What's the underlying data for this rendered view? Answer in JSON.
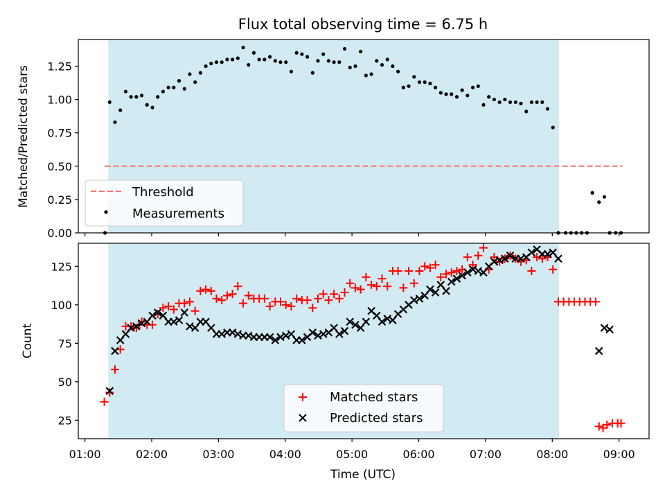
{
  "figure": {
    "title": "Flux total observing time = 6.75 h",
    "xlabel": "Time (UTC)"
  },
  "chart_data": [
    {
      "type": "scatter",
      "title": "Flux total observing time = 6.75 h",
      "xlabel": "",
      "ylabel": "Matched/Predicted stars",
      "x_unit": "hours UTC",
      "xlim": [
        0.9,
        9.45
      ],
      "ylim": [
        0.0,
        1.45
      ],
      "yticks": [
        0.0,
        0.25,
        0.5,
        0.75,
        1.0,
        1.25
      ],
      "ytick_labels": [
        "0.00",
        "0.25",
        "0.50",
        "0.75",
        "1.00",
        "1.25"
      ],
      "xticks": [
        1,
        2,
        3,
        4,
        5,
        6,
        7,
        8,
        9
      ],
      "grid": false,
      "legend": "lower-left",
      "shaded_region": {
        "x_start": 1.35,
        "x_end": 8.1,
        "color": "#add8e6"
      },
      "threshold": {
        "name": "Threshold",
        "y": 0.5,
        "x_start": 1.3,
        "x_end": 9.05,
        "color": "#ff7070",
        "style": "dashed"
      },
      "series": [
        {
          "name": "Measurements",
          "color": "#000000",
          "marker": "dot",
          "x": [
            1.3,
            1.37,
            1.45,
            1.53,
            1.61,
            1.69,
            1.77,
            1.85,
            1.93,
            2.01,
            2.09,
            2.17,
            2.25,
            2.33,
            2.41,
            2.49,
            2.57,
            2.65,
            2.73,
            2.81,
            2.89,
            2.97,
            3.05,
            3.13,
            3.21,
            3.29,
            3.37,
            3.45,
            3.53,
            3.61,
            3.69,
            3.77,
            3.85,
            3.93,
            4.01,
            4.09,
            4.17,
            4.25,
            4.33,
            4.41,
            4.49,
            4.57,
            4.65,
            4.73,
            4.81,
            4.89,
            4.97,
            5.05,
            5.13,
            5.21,
            5.29,
            5.37,
            5.45,
            5.53,
            5.61,
            5.69,
            5.77,
            5.85,
            5.93,
            6.01,
            6.09,
            6.17,
            6.25,
            6.33,
            6.41,
            6.49,
            6.57,
            6.65,
            6.73,
            6.81,
            6.89,
            6.97,
            7.05,
            7.13,
            7.21,
            7.29,
            7.37,
            7.45,
            7.53,
            7.61,
            7.69,
            7.77,
            7.85,
            7.93,
            8.01,
            8.09,
            8.2,
            8.28,
            8.36,
            8.44,
            8.52,
            8.6,
            8.7,
            8.78,
            8.86,
            8.95,
            9.03
          ],
          "y": [
            0.0,
            0.98,
            0.83,
            0.92,
            1.06,
            1.02,
            1.02,
            1.03,
            0.96,
            0.94,
            1.02,
            1.06,
            1.09,
            1.09,
            1.14,
            1.08,
            1.19,
            1.13,
            1.2,
            1.25,
            1.27,
            1.28,
            1.28,
            1.3,
            1.3,
            1.31,
            1.39,
            1.26,
            1.35,
            1.3,
            1.3,
            1.32,
            1.29,
            1.28,
            1.28,
            1.21,
            1.35,
            1.34,
            1.32,
            1.2,
            1.29,
            1.34,
            1.29,
            1.28,
            1.28,
            1.38,
            1.24,
            1.25,
            1.36,
            1.18,
            1.19,
            1.29,
            1.26,
            1.3,
            1.25,
            1.21,
            1.09,
            1.1,
            1.17,
            1.13,
            1.13,
            1.12,
            1.09,
            1.05,
            1.04,
            1.04,
            1.02,
            1.07,
            1.03,
            1.09,
            1.1,
            0.96,
            1.02,
            1.0,
            0.98,
            1.0,
            0.98,
            0.98,
            0.97,
            0.91,
            0.98,
            0.98,
            0.98,
            0.93,
            0.79,
            0.0,
            0.0,
            0.0,
            0.0,
            0.0,
            0.0,
            0.3,
            0.23,
            0.27,
            0.0,
            0.0,
            0.0
          ]
        }
      ]
    },
    {
      "type": "scatter",
      "title": "",
      "xlabel": "Time (UTC)",
      "ylabel": "Count",
      "x_unit": "hours UTC",
      "xlim": [
        0.9,
        9.45
      ],
      "ylim": [
        13,
        140
      ],
      "yticks": [
        25,
        50,
        75,
        100,
        125
      ],
      "ytick_labels": [
        "25",
        "50",
        "75",
        "100",
        "125"
      ],
      "xticks": [
        1,
        2,
        3,
        4,
        5,
        6,
        7,
        8,
        9
      ],
      "xtick_labels": [
        "01:00",
        "02:00",
        "03:00",
        "04:00",
        "05:00",
        "06:00",
        "07:00",
        "08:00",
        "09:00"
      ],
      "grid": false,
      "legend": "lower-center",
      "shaded_region": {
        "x_start": 1.35,
        "x_end": 8.1,
        "color": "#add8e6"
      },
      "series": [
        {
          "name": "Matched stars",
          "color": "#ff0000",
          "marker": "plus",
          "x": [
            1.29,
            1.37,
            1.45,
            1.53,
            1.61,
            1.69,
            1.77,
            1.85,
            1.93,
            2.01,
            2.09,
            2.17,
            2.25,
            2.33,
            2.41,
            2.49,
            2.57,
            2.65,
            2.73,
            2.81,
            2.89,
            2.97,
            3.05,
            3.13,
            3.21,
            3.29,
            3.37,
            3.45,
            3.53,
            3.61,
            3.69,
            3.77,
            3.85,
            3.93,
            4.01,
            4.09,
            4.17,
            4.25,
            4.33,
            4.41,
            4.49,
            4.57,
            4.65,
            4.73,
            4.81,
            4.89,
            4.97,
            5.05,
            5.13,
            5.21,
            5.29,
            5.37,
            5.45,
            5.53,
            5.61,
            5.69,
            5.77,
            5.85,
            5.93,
            6.01,
            6.09,
            6.17,
            6.25,
            6.33,
            6.41,
            6.49,
            6.57,
            6.65,
            6.73,
            6.81,
            6.89,
            6.97,
            7.05,
            7.13,
            7.21,
            7.29,
            7.37,
            7.45,
            7.53,
            7.61,
            7.69,
            7.77,
            7.85,
            7.93,
            8.01,
            8.09,
            8.17,
            8.25,
            8.33,
            8.41,
            8.49,
            8.57,
            8.65,
            8.7,
            8.76,
            8.82,
            8.9,
            8.98,
            9.03
          ],
          "y": [
            37,
            43,
            58,
            71,
            86,
            86,
            85,
            89,
            87,
            87,
            94,
            98,
            99,
            97,
            101,
            101,
            102,
            96,
            109,
            110,
            109,
            104,
            103,
            106,
            107,
            112,
            101,
            106,
            104,
            104,
            104,
            99,
            102,
            102,
            100,
            99,
            104,
            103,
            103,
            98,
            104,
            107,
            103,
            107,
            104,
            108,
            114,
            111,
            110,
            118,
            113,
            112,
            117,
            112,
            122,
            122,
            111,
            122,
            114,
            122,
            125,
            124,
            126,
            118,
            120,
            121,
            122,
            123,
            131,
            126,
            132,
            137,
            123,
            131,
            128,
            130,
            132,
            130,
            128,
            129,
            122,
            131,
            130,
            131,
            123,
            102,
            102,
            102,
            102,
            102,
            102,
            102,
            102,
            21,
            20,
            22,
            23,
            23,
            23
          ]
        },
        {
          "name": "Predicted stars",
          "color": "#000000",
          "marker": "x",
          "x": [
            1.37,
            1.45,
            1.53,
            1.61,
            1.69,
            1.77,
            1.85,
            1.93,
            2.01,
            2.09,
            2.17,
            2.25,
            2.33,
            2.41,
            2.49,
            2.57,
            2.65,
            2.73,
            2.81,
            2.89,
            2.97,
            3.05,
            3.13,
            3.21,
            3.29,
            3.37,
            3.45,
            3.53,
            3.61,
            3.69,
            3.77,
            3.85,
            3.93,
            4.01,
            4.09,
            4.17,
            4.25,
            4.33,
            4.41,
            4.49,
            4.57,
            4.65,
            4.73,
            4.81,
            4.89,
            4.97,
            5.05,
            5.13,
            5.21,
            5.29,
            5.37,
            5.45,
            5.53,
            5.61,
            5.69,
            5.77,
            5.85,
            5.93,
            6.01,
            6.09,
            6.17,
            6.25,
            6.33,
            6.41,
            6.49,
            6.57,
            6.65,
            6.73,
            6.81,
            6.89,
            6.97,
            7.05,
            7.13,
            7.21,
            7.29,
            7.37,
            7.45,
            7.53,
            7.61,
            7.69,
            7.77,
            7.85,
            7.93,
            8.01,
            8.09,
            8.7,
            8.78,
            8.86
          ],
          "y": [
            44,
            70,
            77,
            81,
            85,
            86,
            88,
            89,
            93,
            95,
            93,
            89,
            89,
            90,
            95,
            86,
            85,
            89,
            89,
            85,
            81,
            81,
            82,
            82,
            81,
            80,
            80,
            79,
            79,
            79,
            79,
            77,
            79,
            80,
            81,
            77,
            77,
            79,
            82,
            80,
            81,
            82,
            85,
            81,
            83,
            89,
            87,
            85,
            89,
            96,
            93,
            89,
            91,
            90,
            94,
            97,
            100,
            103,
            104,
            106,
            110,
            108,
            113,
            109,
            115,
            117,
            119,
            121,
            123,
            122,
            121,
            125,
            128,
            129,
            130,
            132,
            130,
            130,
            131,
            134,
            136,
            133,
            133,
            134,
            130,
            70,
            85,
            84
          ]
        }
      ]
    }
  ]
}
